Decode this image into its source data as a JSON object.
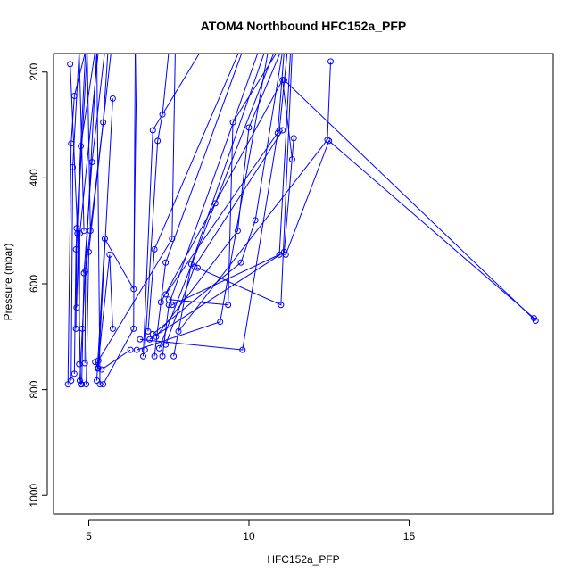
{
  "chart_data": {
    "type": "line",
    "title": "ATOM4 Northbound HFC152a_PFP",
    "xlabel": "HFC152a_PFP",
    "ylabel": "Pressure (mbar)",
    "xlim": [
      3.9,
      19.5
    ],
    "ylim": [
      1035,
      165
    ],
    "y_reversed": true,
    "grid": false,
    "legend": "none",
    "xticks": [
      5,
      10,
      15
    ],
    "yticks": [
      200,
      400,
      600,
      800,
      1000
    ],
    "colors": {
      "series": "#0000ff",
      "axis": "#000000"
    },
    "series": [
      {
        "x": [
          4.35,
          4.45,
          4.55,
          4.9
        ],
        "y": [
          790,
          335,
          245,
          160
        ]
      },
      {
        "x": [
          4.42,
          4.65,
          4.75
        ],
        "y": [
          185,
          505,
          790
        ]
      },
      {
        "x": [
          4.45,
          4.5,
          4.7,
          4.85
        ],
        "y": [
          783,
          380,
          160,
          500
        ]
      },
      {
        "x": [
          4.55,
          4.6,
          4.95,
          5.05
        ],
        "y": [
          770,
          535,
          160,
          500
        ]
      },
      {
        "x": [
          4.6,
          4.62,
          4.9
        ],
        "y": [
          685,
          495,
          160
        ]
      },
      {
        "x": [
          4.62,
          4.75,
          5.2
        ],
        "y": [
          645,
          340,
          160
        ]
      },
      {
        "x": [
          4.7,
          4.72,
          5.3
        ],
        "y": [
          752,
          505,
          160
        ]
      },
      {
        "x": [
          4.72,
          4.8,
          5.25,
          5.35
        ],
        "y": [
          783,
          685,
          160,
          790
        ]
      },
      {
        "x": [
          4.78,
          4.85,
          5.1,
          5.5
        ],
        "y": [
          790,
          580,
          370,
          160
        ]
      },
      {
        "x": [
          4.88,
          4.9,
          5.45,
          5.6
        ],
        "y": [
          750,
          575,
          295,
          160
        ]
      },
      {
        "x": [
          4.92,
          5.0,
          5.7
        ],
        "y": [
          790,
          540,
          160
        ]
      },
      {
        "x": [
          5.2,
          5.3,
          5.75
        ],
        "y": [
          748,
          760,
          250
        ]
      },
      {
        "x": [
          5.25,
          5.5,
          6.4,
          6.5
        ],
        "y": [
          783,
          515,
          610,
          160
        ]
      },
      {
        "x": [
          5.28,
          5.65,
          5.75
        ],
        "y": [
          760,
          545,
          685
        ]
      },
      {
        "x": [
          5.45,
          6.4,
          6.45
        ],
        "y": [
          790,
          685,
          160
        ]
      },
      {
        "x": [
          5.4,
          6.3
        ],
        "y": [
          762,
          725
        ]
      },
      {
        "x": [
          5.3,
          7.6,
          7.7
        ],
        "y": [
          745,
          515,
          160
        ]
      },
      {
        "x": [
          6.7,
          7.0,
          8.5
        ],
        "y": [
          737,
          310,
          160
        ]
      },
      {
        "x": [
          6.75,
          7.15,
          7.3,
          7.5
        ],
        "y": [
          725,
          330,
          280,
          160
        ]
      },
      {
        "x": [
          6.85,
          7.05,
          9.7
        ],
        "y": [
          690,
          535,
          160
        ]
      },
      {
        "x": [
          7.05,
          7.4,
          9.8
        ],
        "y": [
          737,
          560,
          160
        ]
      },
      {
        "x": [
          7.3,
          7.5,
          10.3
        ],
        "y": [
          737,
          640,
          160
        ]
      },
      {
        "x": [
          7.65,
          8.2,
          10.5
        ],
        "y": [
          737,
          563,
          160
        ]
      },
      {
        "x": [
          6.5,
          9.1,
          10.6
        ],
        "y": [
          725,
          672,
          160
        ]
      },
      {
        "x": [
          7.2,
          8.95,
          10.8
        ],
        "y": [
          722,
          448,
          160
        ]
      },
      {
        "x": [
          7.5,
          9.35,
          9.5,
          10.9
        ],
        "y": [
          630,
          640,
          295,
          160
        ]
      },
      {
        "x": [
          7.1,
          9.65,
          10.0,
          11.0
        ],
        "y": [
          700,
          500,
          305,
          160
        ]
      },
      {
        "x": [
          7.0,
          9.75,
          10.2,
          11.05
        ],
        "y": [
          695,
          560,
          480,
          160
        ]
      },
      {
        "x": [
          6.6,
          9.8,
          10.9,
          11.1
        ],
        "y": [
          705,
          725,
          315,
          160
        ]
      },
      {
        "x": [
          7.6,
          10.95,
          11.3
        ],
        "y": [
          640,
          545,
          160
        ]
      },
      {
        "x": [
          7.4,
          10.95,
          11.2
        ],
        "y": [
          620,
          310,
          160
        ]
      },
      {
        "x": [
          8.4,
          11.0,
          11.35
        ],
        "y": [
          570,
          640,
          160
        ]
      },
      {
        "x": [
          6.9,
          11.1,
          11.4
        ],
        "y": [
          705,
          540,
          325
        ]
      },
      {
        "x": [
          7.25,
          11.05,
          11.35
        ],
        "y": [
          635,
          215,
          365
        ]
      },
      {
        "x": [
          11.1,
          18.95
        ],
        "y": [
          215,
          670
        ]
      },
      {
        "x": [
          7.8,
          12.45,
          12.55
        ],
        "y": [
          690,
          328,
          180
        ]
      },
      {
        "x": [
          11.15,
          12.5,
          18.9
        ],
        "y": [
          545,
          330,
          665
        ]
      },
      {
        "x": [
          7.4,
          8.3,
          11.05
        ],
        "y": [
          715,
          568,
          310
        ]
      }
    ]
  }
}
